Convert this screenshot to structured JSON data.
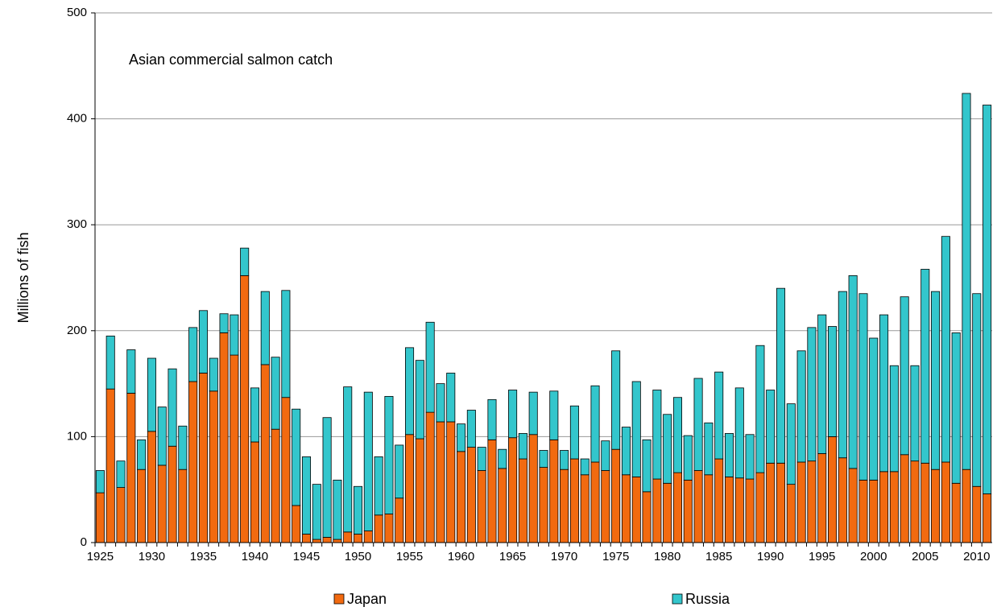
{
  "chart_data": {
    "type": "stacked_bar",
    "title": "Asian commercial salmon catch",
    "y_label": "Millions of fish",
    "categories": [
      "1925",
      null,
      null,
      null,
      null,
      "1930",
      null,
      null,
      null,
      null,
      "1935",
      null,
      null,
      null,
      null,
      "1940",
      null,
      null,
      null,
      null,
      "1945",
      null,
      null,
      null,
      null,
      "1950",
      null,
      null,
      null,
      null,
      "1955",
      null,
      null,
      null,
      null,
      "1960",
      null,
      null,
      null,
      null,
      "1965",
      null,
      null,
      null,
      null,
      "1970",
      null,
      null,
      null,
      null,
      "1975",
      null,
      null,
      null,
      null,
      "1980",
      null,
      null,
      null,
      null,
      "1985",
      null,
      null,
      null,
      null,
      "1990",
      null,
      null,
      null,
      null,
      "1995",
      null,
      null,
      null,
      null,
      "2000",
      null,
      null,
      null,
      null,
      "2005",
      null,
      null,
      null,
      null,
      "2010",
      null
    ],
    "series": [
      {
        "name": "Japan",
        "color": "#f26a10",
        "values": [
          47,
          145,
          52,
          141,
          69,
          105,
          73,
          91,
          69,
          152,
          160,
          143,
          198,
          177,
          252,
          95,
          168,
          107,
          137,
          35,
          8,
          3,
          5,
          3,
          10,
          8,
          11,
          26,
          27,
          42,
          102,
          98,
          123,
          114,
          114,
          86,
          90,
          68,
          97,
          70,
          99,
          79,
          102,
          71,
          97,
          69,
          79,
          64,
          76,
          68,
          88,
          64,
          62,
          48,
          60,
          56,
          66,
          59,
          68,
          64,
          79,
          62,
          61,
          60,
          66,
          75,
          75,
          55,
          76,
          77,
          84,
          100,
          80,
          70,
          59,
          59,
          67,
          67,
          83,
          77,
          75,
          69,
          76,
          56,
          69,
          53,
          46
        ]
      },
      {
        "name": "Russia",
        "color": "#33c6cc",
        "values": [
          21,
          50,
          25,
          41,
          28,
          69,
          55,
          73,
          41,
          51,
          59,
          31,
          18,
          38,
          26,
          51,
          69,
          68,
          101,
          91,
          73,
          52,
          113,
          56,
          137,
          45,
          131,
          55,
          111,
          50,
          82,
          74,
          85,
          36,
          46,
          26,
          35,
          22,
          38,
          18,
          45,
          24,
          40,
          16,
          46,
          18,
          50,
          15,
          72,
          28,
          93,
          45,
          90,
          49,
          84,
          65,
          71,
          42,
          87,
          49,
          82,
          41,
          85,
          42,
          120,
          69,
          165,
          76,
          105,
          126,
          131,
          104,
          157,
          182,
          176,
          134,
          148,
          100,
          149,
          90,
          183,
          168,
          213,
          142,
          355,
          182,
          367
        ]
      }
    ],
    "ylim": [
      0,
      500
    ],
    "yticks": [
      0,
      100,
      200,
      300,
      400,
      500
    ],
    "grid": true,
    "legend": "bottom"
  }
}
